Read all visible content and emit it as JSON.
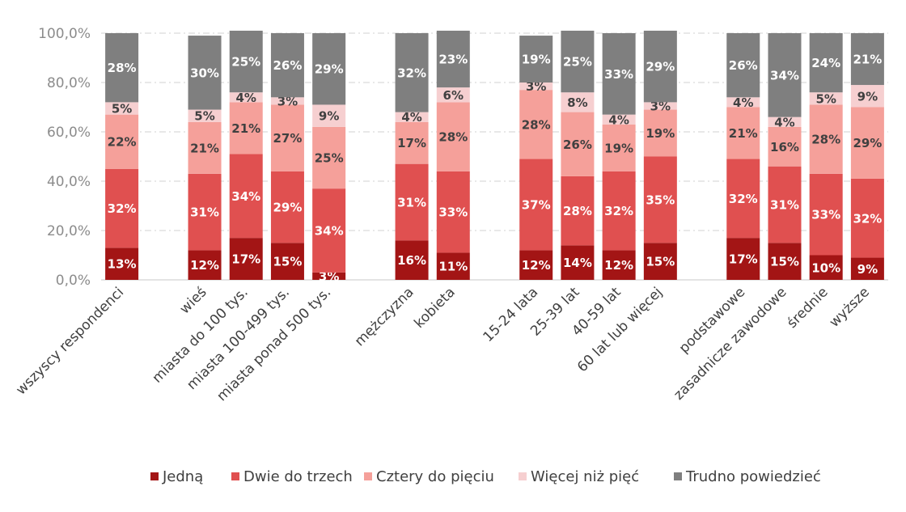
{
  "chart_data": {
    "type": "bar",
    "stacked": true,
    "title": "",
    "xlabel": "",
    "ylabel": "",
    "ylim": [
      0,
      100
    ],
    "y_ticks": [
      "0,0%",
      "20,0%",
      "40,0%",
      "60,0%",
      "80,0%",
      "100,0%"
    ],
    "grid": true,
    "legend_position": "bottom",
    "categories": [
      "wszyscy respondenci",
      "",
      "wieś",
      "miasta do 100 tys.",
      "miasta 100-499 tys.",
      "miasta ponad 500 tys.",
      "",
      "mężczyzna",
      "kobieta",
      "",
      "15-24 lata",
      "25-39 lat",
      "40-59 lat",
      "60 lat lub więcej",
      "",
      "podstawowe",
      "zasadnicze zawodowe",
      "średnie",
      "wyższe"
    ],
    "series": [
      {
        "name": "Jedną",
        "color": "#a31515",
        "values": [
          13,
          null,
          12,
          17,
          15,
          3,
          null,
          16,
          11,
          null,
          12,
          14,
          12,
          15,
          null,
          17,
          15,
          10,
          9
        ],
        "labels": [
          "13%",
          "",
          "12%",
          "17%",
          "15%",
          "3%",
          "",
          "16%",
          "11%",
          "",
          "12%",
          "14%",
          "12%",
          "15%",
          "",
          "17%",
          "15%",
          "10%",
          "9%"
        ]
      },
      {
        "name": "Dwie do trzech",
        "color": "#e05050",
        "values": [
          32,
          null,
          31,
          34,
          29,
          34,
          null,
          31,
          33,
          null,
          37,
          28,
          32,
          35,
          null,
          32,
          31,
          33,
          32
        ],
        "labels": [
          "32%",
          "",
          "31%",
          "34%",
          "29%",
          "34%",
          "",
          "31%",
          "33%",
          "",
          "37%",
          "28%",
          "32%",
          "35%",
          "",
          "32%",
          "31%",
          "33%",
          "32%"
        ]
      },
      {
        "name": "Cztery do pięciu",
        "color": "#f5a09a",
        "values": [
          22,
          null,
          21,
          21,
          27,
          25,
          null,
          17,
          28,
          null,
          28,
          26,
          19,
          19,
          null,
          21,
          16,
          28,
          29
        ],
        "labels": [
          "22%",
          "",
          "21%",
          "21%",
          "27%",
          "25%",
          "",
          "17%",
          "28%",
          "",
          "28%",
          "26%",
          "19%",
          "19%",
          "",
          "21%",
          "16%",
          "28%",
          "29%"
        ]
      },
      {
        "name": "Więcej niż pięć",
        "color": "#f6cfd0",
        "values": [
          5,
          null,
          5,
          4,
          3,
          9,
          null,
          4,
          6,
          null,
          3,
          8,
          4,
          3,
          null,
          4,
          4,
          5,
          9
        ],
        "labels": [
          "5%",
          "",
          "5%",
          "4%",
          "3%",
          "9%",
          "",
          "4%",
          "6%",
          "",
          "3%",
          "8%",
          "4%",
          "3%",
          "",
          "4%",
          "4%",
          "5%",
          "9%"
        ]
      },
      {
        "name": "Trudno powiedzieć",
        "color": "#7f7f7f",
        "values": [
          28,
          null,
          30,
          25,
          26,
          29,
          null,
          32,
          23,
          null,
          19,
          25,
          33,
          29,
          null,
          26,
          34,
          24,
          21
        ],
        "labels": [
          "28%",
          "",
          "30%",
          "25%",
          "26%",
          "29%",
          "",
          "32%",
          "23%",
          "",
          "19%",
          "25%",
          "33%",
          "29%",
          "",
          "26%",
          "34%",
          "24%",
          "21%"
        ]
      }
    ]
  }
}
